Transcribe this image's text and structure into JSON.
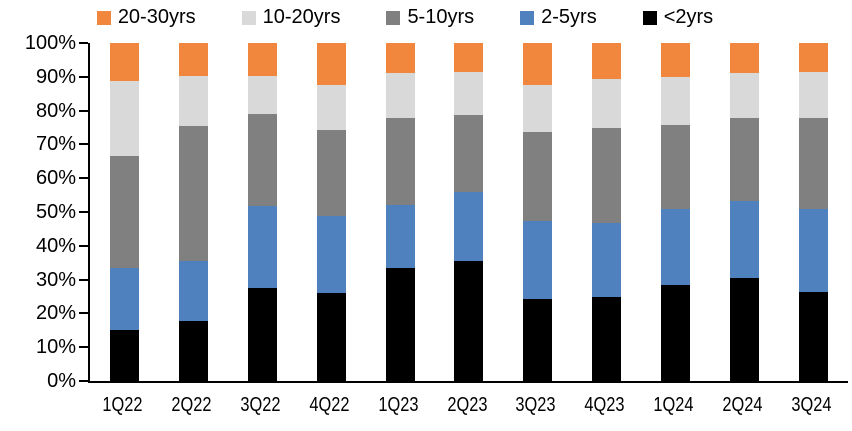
{
  "chart_data": {
    "type": "bar",
    "stacked": true,
    "units": "percent",
    "title": "",
    "xlabel": "",
    "ylabel": "",
    "grid": false,
    "legend_position": "top",
    "legend_order": [
      "20-30yrs",
      "10-20yrs",
      "5-10yrs",
      "2-5yrs",
      "<2yrs"
    ],
    "y_axis": {
      "min": 0,
      "max": 100,
      "tick_step": 10,
      "tick_labels": [
        "0%",
        "10%",
        "20%",
        "30%",
        "40%",
        "50%",
        "60%",
        "70%",
        "80%",
        "90%",
        "100%"
      ]
    },
    "categories": [
      "1Q22",
      "2Q22",
      "3Q22",
      "4Q22",
      "1Q23",
      "2Q23",
      "3Q23",
      "4Q23",
      "1Q24",
      "2Q24",
      "3Q24"
    ],
    "series": [
      {
        "name": "<2yrs",
        "color": "#000000",
        "values": [
          15.0,
          17.7,
          27.6,
          26.0,
          33.4,
          35.6,
          24.4,
          25.0,
          28.4,
          30.4,
          26.4
        ]
      },
      {
        "name": "2-5yrs",
        "color": "#4E81BD",
        "values": [
          18.5,
          17.9,
          24.2,
          22.7,
          18.8,
          20.4,
          23.0,
          21.7,
          22.4,
          22.8,
          24.4
        ]
      },
      {
        "name": "5-10yrs",
        "color": "#808080",
        "values": [
          33.0,
          39.8,
          27.3,
          25.7,
          25.7,
          22.8,
          26.4,
          28.1,
          25.0,
          24.6,
          27.0
        ]
      },
      {
        "name": "10-20yrs",
        "color": "#D9D9D9",
        "values": [
          22.2,
          14.9,
          11.2,
          13.3,
          13.3,
          12.7,
          13.7,
          14.7,
          14.2,
          13.2,
          13.7
        ]
      },
      {
        "name": "20-30yrs",
        "color": "#F0873C",
        "values": [
          11.3,
          9.7,
          9.7,
          12.3,
          8.8,
          8.5,
          12.5,
          10.5,
          10.0,
          9.0,
          8.5
        ]
      }
    ],
    "axis_color": "#000000",
    "background_color": "#FFFFFF"
  }
}
